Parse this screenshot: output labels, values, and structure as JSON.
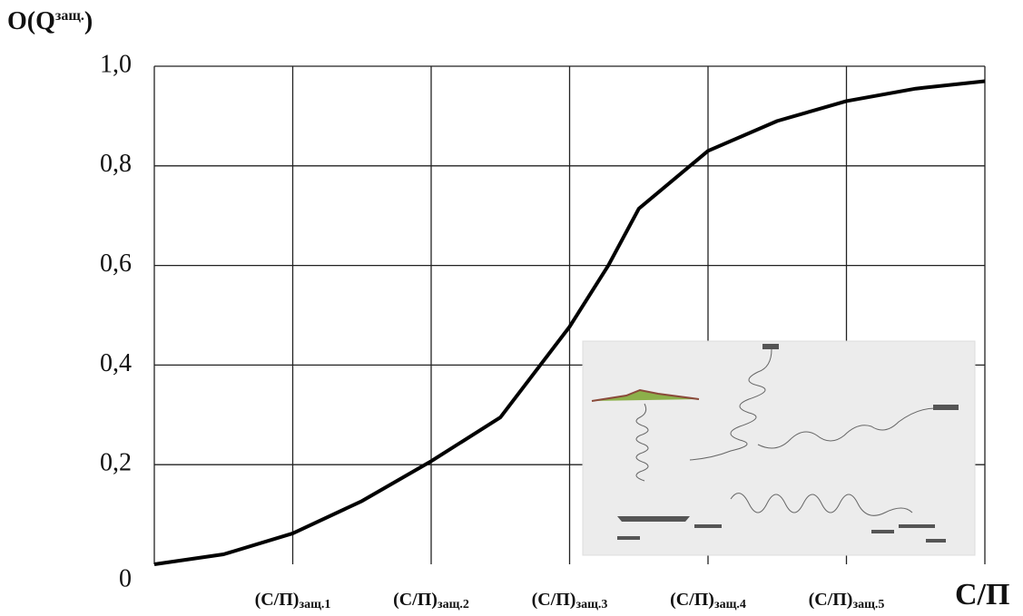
{
  "chart_data": {
    "type": "line",
    "y_label": {
      "text": "O(Q",
      "sup": "защ.",
      "close": ")"
    },
    "x_label": "С/П",
    "x": [
      0,
      0.5,
      1,
      1.5,
      2,
      2.5,
      3,
      3.28,
      3.5,
      4,
      4.5,
      5,
      5.5,
      6
    ],
    "series": [
      {
        "color": "#000000",
        "values": [
          0,
          0.02,
          0.062,
          0.127,
          0.207,
          0.295,
          0.477,
          0.6,
          0.714,
          0.83,
          0.89,
          0.93,
          0.955,
          0.97
        ]
      }
    ],
    "xlim": [
      0,
      6
    ],
    "xticks": [
      {
        "value": 1,
        "label": "(С/П)",
        "sub": "защ.1"
      },
      {
        "value": 2,
        "label": "(С/П)",
        "sub": "защ.2"
      },
      {
        "value": 3,
        "label": "(С/П)",
        "sub": "защ.3"
      },
      {
        "value": 4,
        "label": "(С/П)",
        "sub": "защ.4"
      },
      {
        "value": 5,
        "label": "(С/П)",
        "sub": "защ.5"
      }
    ],
    "ylim": [
      0,
      1
    ],
    "yticks": [
      0,
      {
        "value": 0.2,
        "label": "0,2"
      },
      {
        "value": 0.4,
        "label": "0,4"
      },
      {
        "value": 0.6,
        "label": "0,6"
      },
      {
        "value": 0.8,
        "label": "0,8"
      },
      {
        "value": 1,
        "label": "1,0"
      }
    ],
    "grid": true
  }
}
